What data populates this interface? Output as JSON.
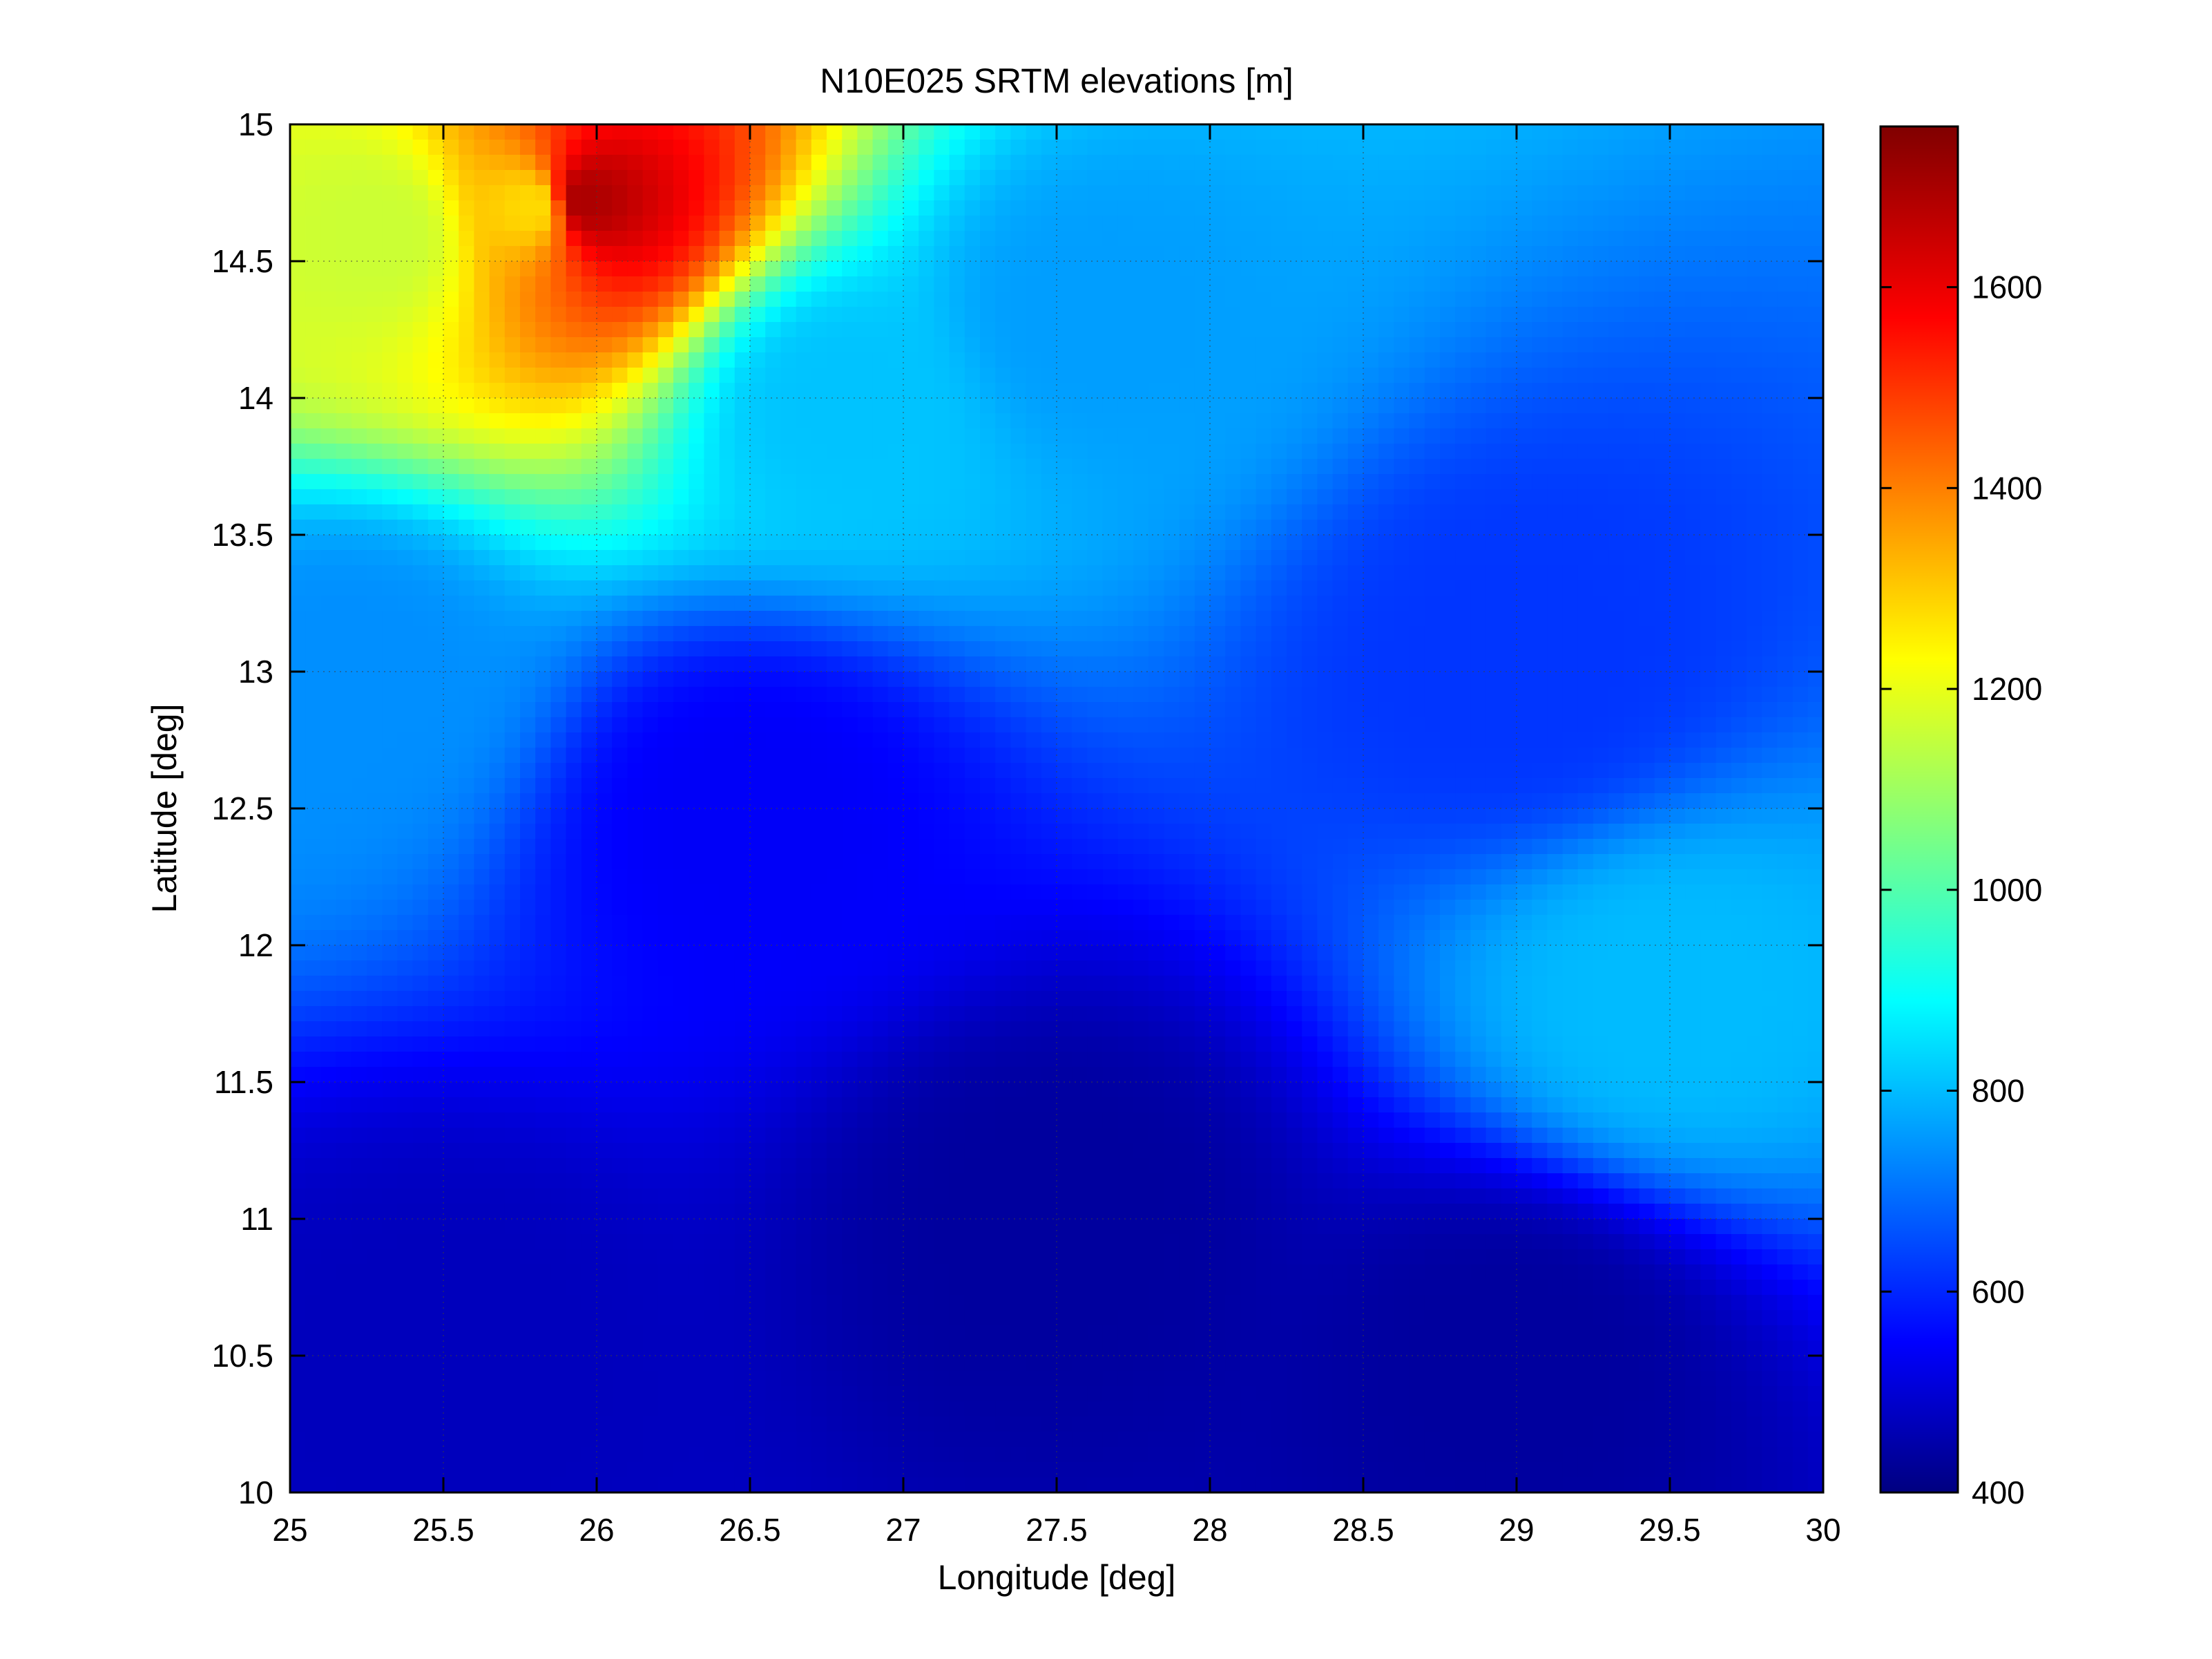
{
  "chart_data": {
    "type": "heatmap",
    "title": "N10E025 SRTM elevations [m]",
    "xlabel": "Longitude [deg]",
    "ylabel": "Latitude [deg]",
    "xlim": [
      25,
      30
    ],
    "ylim": [
      10,
      15
    ],
    "xticks": [
      25,
      25.5,
      26,
      26.5,
      27,
      27.5,
      28,
      28.5,
      29,
      29.5,
      30
    ],
    "xtick_labels": [
      "25",
      "25.5",
      "26",
      "26.5",
      "27",
      "27.5",
      "28",
      "28.5",
      "29",
      "29.5",
      "30"
    ],
    "yticks": [
      10,
      10.5,
      11,
      11.5,
      12,
      12.5,
      13,
      13.5,
      14,
      14.5,
      15
    ],
    "ytick_labels": [
      "10",
      "10.5",
      "11",
      "11.5",
      "12",
      "12.5",
      "13",
      "13.5",
      "14",
      "14.5",
      "15"
    ],
    "grid": true,
    "colormap": "jet",
    "colorbar": {
      "range": [
        400,
        1760
      ],
      "ticks": [
        400,
        600,
        800,
        1000,
        1200,
        1400,
        1600
      ],
      "tick_labels": [
        "400",
        "600",
        "800",
        "1000",
        "1200",
        "1400",
        "1600"
      ]
    },
    "approx_elevation_samples": [
      {
        "lon": 25.3,
        "lat": 14.6,
        "elev": 1180
      },
      {
        "lon": 25.8,
        "lat": 14.7,
        "elev": 1300
      },
      {
        "lon": 25.95,
        "lat": 14.72,
        "elev": 1700
      },
      {
        "lon": 26.8,
        "lat": 14.0,
        "elev": 830
      },
      {
        "lon": 27.6,
        "lat": 14.3,
        "elev": 780
      },
      {
        "lon": 25.2,
        "lat": 13.0,
        "elev": 760
      },
      {
        "lon": 26.5,
        "lat": 12.5,
        "elev": 560
      },
      {
        "lon": 27.5,
        "lat": 11.0,
        "elev": 440
      },
      {
        "lon": 29.0,
        "lat": 13.0,
        "elev": 640
      },
      {
        "lon": 29.5,
        "lat": 11.8,
        "elev": 820
      },
      {
        "lon": 29.0,
        "lat": 10.5,
        "elev": 440
      },
      {
        "lon": 25.5,
        "lat": 10.5,
        "elev": 480
      }
    ]
  }
}
